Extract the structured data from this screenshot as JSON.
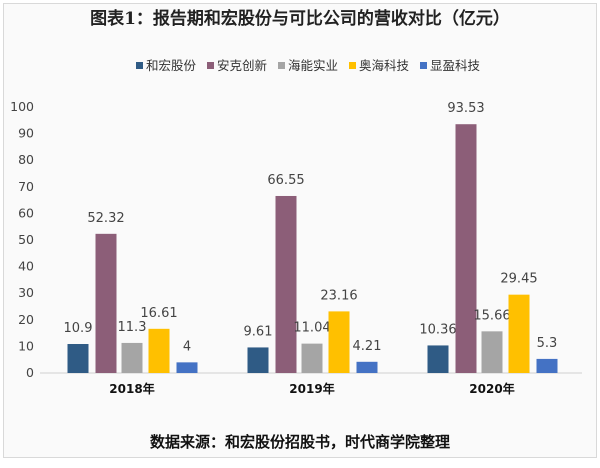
{
  "chart_data": {
    "type": "bar",
    "title": "图表1：报告期和宏股份与可比公司的营收对比（亿元）",
    "source": "数据来源：和宏股份招股书，时代商学院整理",
    "categories": [
      "2018年",
      "2019年",
      "2020年"
    ],
    "ylim": [
      0,
      100
    ],
    "yticks": [
      0,
      10,
      20,
      30,
      40,
      50,
      60,
      70,
      80,
      90,
      100
    ],
    "grid": false,
    "legend_position": "top",
    "series": [
      {
        "name": "和宏股份",
        "color": "#2f5b85",
        "values": [
          10.9,
          9.61,
          10.36
        ]
      },
      {
        "name": "安克创新",
        "color": "#8c5e78",
        "values": [
          52.32,
          66.55,
          93.53
        ]
      },
      {
        "name": "海能实业",
        "color": "#a5a5a5",
        "values": [
          11.3,
          11.04,
          15.66
        ]
      },
      {
        "name": "奥海科技",
        "color": "#ffc000",
        "values": [
          16.61,
          23.16,
          29.45
        ]
      },
      {
        "name": "显盈科技",
        "color": "#4472c4",
        "values": [
          4,
          4.21,
          5.3
        ]
      }
    ]
  }
}
